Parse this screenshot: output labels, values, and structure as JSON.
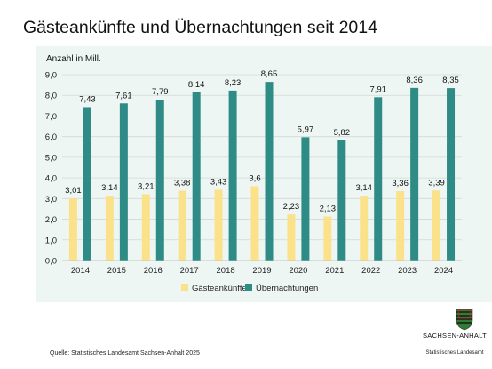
{
  "title": "Gästeankünfte und Übernachtungen seit 2014",
  "source": "Quelle:  Statistisches Landesamt Sachsen-Anhalt 2025",
  "logo": {
    "name": "SACHSEN-ANHALT",
    "subtitle": "Statistisches Landesamt"
  },
  "colors": {
    "series1": "#fbe28a",
    "series2": "#2e8b85",
    "panel": "#eef6f4",
    "grid": "#d2d9d7"
  },
  "chart_data": {
    "type": "bar",
    "ylabel": "Anzahl in Mill.",
    "ylim": [
      0,
      9
    ],
    "yticks": [
      "0,0",
      "1,0",
      "2,0",
      "3,0",
      "4,0",
      "5,0",
      "6,0",
      "7,0",
      "8,0",
      "9,0"
    ],
    "categories": [
      "2014",
      "2015",
      "2016",
      "2017",
      "2018",
      "2019",
      "2020",
      "2021",
      "2022",
      "2023",
      "2024"
    ],
    "series": [
      {
        "name": "Gästeankünfte",
        "values": [
          3.01,
          3.14,
          3.21,
          3.38,
          3.43,
          3.6,
          2.23,
          2.13,
          3.14,
          3.36,
          3.39
        ],
        "labels": [
          "3,01",
          "3,14",
          "3,21",
          "3,38",
          "3,43",
          "3,6",
          "2,23",
          "2,13",
          "3,14",
          "3,36",
          "3,39"
        ]
      },
      {
        "name": "Übernachtungen",
        "values": [
          7.43,
          7.61,
          7.79,
          8.14,
          8.23,
          8.65,
          5.97,
          5.82,
          7.91,
          8.36,
          8.35
        ],
        "labels": [
          "7,43",
          "7,61",
          "7,79",
          "8,14",
          "8,23",
          "8,65",
          "5,97",
          "5,82",
          "7,91",
          "8,36",
          "8,35"
        ]
      }
    ],
    "grid": true,
    "legend": "bottom"
  }
}
